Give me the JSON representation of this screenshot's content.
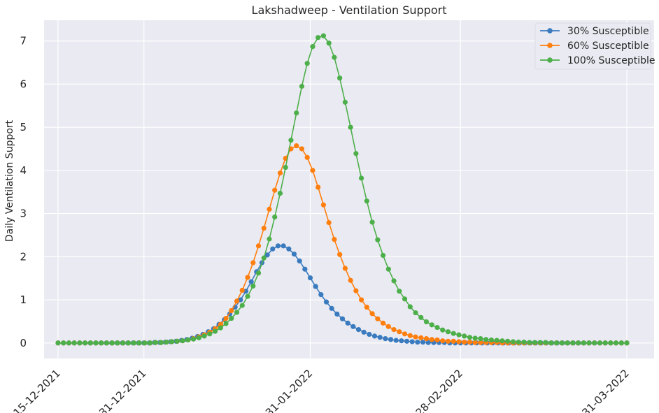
{
  "chart_data": {
    "type": "line",
    "title": "Lakshadweep - Ventilation Support",
    "xlabel": "",
    "ylabel": "Daily Ventilation Support",
    "x_start": "15-12-2021",
    "x_end": "31-03-2022",
    "x_ticks": [
      "15-12-2021",
      "31-12-2021",
      "31-01-2022",
      "28-02-2022",
      "31-03-2022"
    ],
    "y_ticks": [
      0,
      1,
      2,
      3,
      4,
      5,
      6,
      7
    ],
    "ylim": [
      -0.36,
      7.48
    ],
    "grid": true,
    "legend_position": "top-right",
    "series": [
      {
        "name": "30% Susceptible",
        "color": "#3a7bbf",
        "values": [
          0,
          0,
          0,
          0,
          0,
          0,
          0,
          0,
          0,
          0,
          0,
          0,
          0,
          0,
          0,
          0,
          0,
          0,
          0.01,
          0.01,
          0.02,
          0.03,
          0.04,
          0.06,
          0.08,
          0.11,
          0.15,
          0.2,
          0.26,
          0.33,
          0.43,
          0.54,
          0.67,
          0.83,
          1.0,
          1.2,
          1.42,
          1.65,
          1.86,
          2.04,
          2.18,
          2.25,
          2.25,
          2.18,
          2.06,
          1.9,
          1.71,
          1.51,
          1.31,
          1.12,
          0.95,
          0.8,
          0.67,
          0.56,
          0.46,
          0.38,
          0.31,
          0.25,
          0.2,
          0.16,
          0.13,
          0.1,
          0.08,
          0.06,
          0.05,
          0.04,
          0.03,
          0.02,
          0.02,
          0.01,
          0.01,
          0.01,
          0.01,
          0,
          0,
          0,
          0,
          0,
          0,
          0,
          0,
          0,
          0,
          0,
          0,
          0,
          0,
          0,
          0,
          0,
          0,
          0,
          0,
          0,
          0,
          0,
          0,
          0,
          0,
          0,
          0,
          0,
          0,
          0,
          0,
          0,
          0
        ]
      },
      {
        "name": "60% Susceptible",
        "color": "#ff7f0e",
        "values": [
          0,
          0,
          0,
          0,
          0,
          0,
          0,
          0,
          0,
          0,
          0,
          0,
          0,
          0,
          0,
          0,
          0,
          0,
          0.01,
          0.01,
          0.02,
          0.03,
          0.04,
          0.05,
          0.07,
          0.1,
          0.14,
          0.19,
          0.25,
          0.33,
          0.43,
          0.57,
          0.75,
          0.97,
          1.22,
          1.52,
          1.86,
          2.25,
          2.66,
          3.1,
          3.54,
          3.94,
          4.28,
          4.5,
          4.57,
          4.5,
          4.3,
          4.0,
          3.61,
          3.2,
          2.79,
          2.4,
          2.05,
          1.73,
          1.45,
          1.21,
          1.0,
          0.83,
          0.68,
          0.56,
          0.46,
          0.38,
          0.31,
          0.26,
          0.21,
          0.17,
          0.14,
          0.12,
          0.1,
          0.08,
          0.07,
          0.05,
          0.04,
          0.04,
          0.03,
          0.02,
          0.02,
          0.01,
          0.01,
          0.01,
          0.01,
          0.01,
          0,
          0,
          0,
          0,
          0,
          0,
          0,
          0,
          0,
          0,
          0,
          0,
          0,
          0,
          0,
          0,
          0,
          0,
          0,
          0,
          0,
          0,
          0,
          0
        ]
      },
      {
        "name": "100% Susceptible",
        "color": "#4daf4a",
        "values": [
          0,
          0,
          0,
          0,
          0,
          0,
          0,
          0,
          0,
          0,
          0,
          0,
          0,
          0,
          0,
          0,
          0,
          0,
          0.01,
          0.01,
          0.02,
          0.03,
          0.04,
          0.05,
          0.07,
          0.09,
          0.12,
          0.16,
          0.21,
          0.27,
          0.35,
          0.45,
          0.57,
          0.71,
          0.87,
          1.08,
          1.32,
          1.62,
          1.97,
          2.41,
          2.92,
          3.47,
          4.07,
          4.7,
          5.33,
          5.95,
          6.48,
          6.87,
          7.08,
          7.12,
          6.95,
          6.62,
          6.14,
          5.58,
          5.0,
          4.39,
          3.82,
          3.29,
          2.8,
          2.39,
          2.03,
          1.71,
          1.44,
          1.2,
          1.02,
          0.84,
          0.7,
          0.59,
          0.49,
          0.42,
          0.36,
          0.3,
          0.26,
          0.22,
          0.19,
          0.16,
          0.13,
          0.11,
          0.1,
          0.08,
          0.07,
          0.06,
          0.05,
          0.04,
          0.03,
          0.02,
          0.02,
          0.01,
          0.01,
          0.01,
          0.01,
          0,
          0,
          0,
          0,
          0,
          0,
          0,
          0,
          0,
          0,
          0,
          0,
          0,
          0,
          0
        ]
      }
    ]
  }
}
